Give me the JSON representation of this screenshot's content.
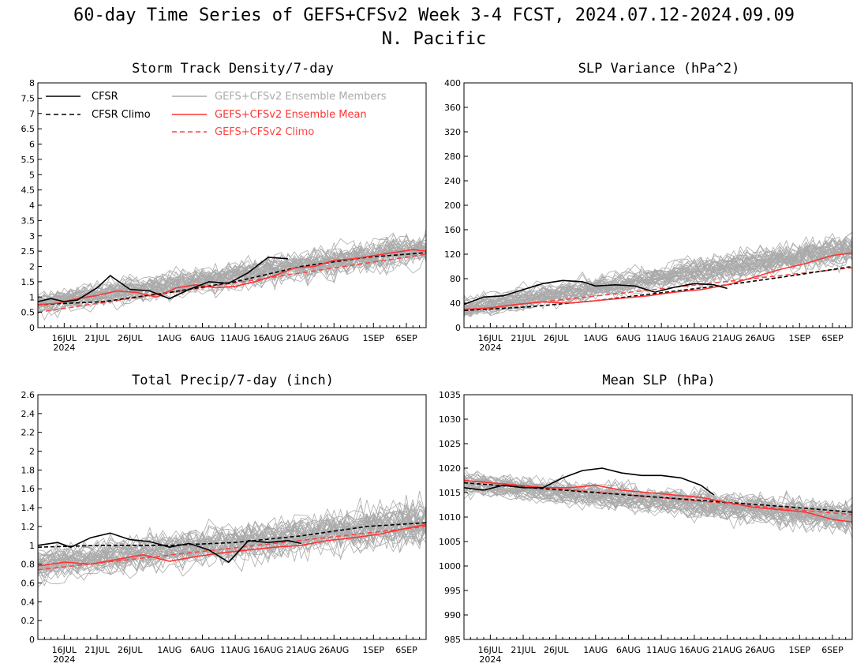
{
  "figure": {
    "title": "60-day Time Series of GEFS+CFSv2 Week 3-4 FCST, 2024.07.12-2024.09.09",
    "subtitle": "N. Pacific"
  },
  "legend": {
    "cfsr": "CFSR",
    "cfsr_climo": "CFSR Climo",
    "members": "GEFS+CFSv2 Ensemble Members",
    "ens_mean": "GEFS+CFSv2 Ensemble Mean",
    "ens_climo": "GEFS+CFSv2 Climo"
  },
  "colors": {
    "cfsr": "#000000",
    "members": "#aaaaaa",
    "ens_mean": "#ff3333",
    "ens_climo": "#ff4444"
  },
  "chart_data": [
    {
      "type": "line",
      "title": "Storm Track Density/7-day",
      "x_range": [
        "2024-07-12",
        "2024-09-09"
      ],
      "x_tick_labels": [
        "16JUL",
        "21JUL",
        "26JUL",
        "1AUG",
        "6AUG",
        "11AUG",
        "16AUG",
        "21AUG",
        "26AUG",
        "1SEP",
        "6SEP"
      ],
      "x_year_label": "2024",
      "ylim": [
        0,
        8
      ],
      "y_ticks": [
        "0",
        "0.5",
        "1",
        "1.5",
        "2",
        "2.5",
        "3",
        "3.5",
        "4",
        "4.5",
        "5",
        "5.5",
        "6",
        "6.5",
        "7",
        "7.5",
        "8"
      ],
      "legend_position": "top-left",
      "members": {
        "count": 40,
        "start_mean": 0.8,
        "end_mean": 2.6,
        "spread": 1.0
      },
      "series": [
        {
          "name": "CFSR",
          "style": "solid-black",
          "x": [
            0,
            2,
            4,
            6,
            9,
            11,
            14,
            17,
            20,
            23,
            26,
            29,
            32,
            35,
            38
          ],
          "y": [
            0.85,
            0.95,
            0.85,
            0.9,
            1.3,
            1.7,
            1.25,
            1.2,
            0.95,
            1.25,
            1.5,
            1.45,
            1.8,
            2.3,
            2.25
          ]
        },
        {
          "name": "CFSR Climo",
          "style": "dashed-black",
          "x": [
            0,
            10,
            20,
            30,
            40,
            50,
            59
          ],
          "y": [
            0.75,
            0.85,
            1.15,
            1.5,
            2.0,
            2.3,
            2.45
          ]
        },
        {
          "name": "GEFS+CFSv2 Ensemble Mean",
          "style": "solid-red",
          "x": [
            0,
            3,
            6,
            9,
            12,
            15,
            18,
            21,
            24,
            27,
            30,
            33,
            36,
            39,
            42,
            45,
            48,
            51,
            54,
            57,
            59
          ],
          "y": [
            0.75,
            0.8,
            0.95,
            1.05,
            1.2,
            1.15,
            1.0,
            1.3,
            1.4,
            1.3,
            1.35,
            1.5,
            1.7,
            1.95,
            2.0,
            2.2,
            2.25,
            2.35,
            2.45,
            2.55,
            2.5
          ]
        },
        {
          "name": "GEFS+CFSv2 Climo",
          "style": "dashed-red",
          "x": [
            0,
            59
          ],
          "y": [
            0.5,
            2.4
          ]
        }
      ]
    },
    {
      "type": "line",
      "title": "SLP Variance (hPa^2)",
      "x_range": [
        "2024-07-12",
        "2024-09-09"
      ],
      "x_tick_labels": [
        "16JUL",
        "21JUL",
        "26JUL",
        "1AUG",
        "6AUG",
        "11AUG",
        "16AUG",
        "21AUG",
        "26AUG",
        "1SEP",
        "6SEP"
      ],
      "x_year_label": "2024",
      "ylim": [
        0,
        400
      ],
      "y_ticks": [
        "0",
        "40",
        "80",
        "120",
        "160",
        "200",
        "240",
        "280",
        "320",
        "360",
        "400"
      ],
      "members": {
        "count": 40,
        "start_mean": 32,
        "end_mean": 130,
        "spread": 45
      },
      "series": [
        {
          "name": "CFSR",
          "style": "solid-black",
          "x": [
            0,
            3,
            6,
            9,
            12,
            15,
            18,
            20,
            23,
            26,
            29,
            32,
            35,
            38,
            40
          ],
          "y": [
            38,
            50,
            52,
            62,
            72,
            77,
            75,
            68,
            70,
            68,
            58,
            66,
            72,
            70,
            64
          ]
        },
        {
          "name": "CFSR Climo",
          "style": "dashed-black",
          "x": [
            0,
            10,
            20,
            30,
            40,
            50,
            59
          ],
          "y": [
            28,
            34,
            44,
            57,
            70,
            85,
            100
          ]
        },
        {
          "name": "GEFS+CFSv2 Ensemble Mean",
          "style": "solid-red",
          "x": [
            0,
            4,
            8,
            12,
            16,
            20,
            24,
            28,
            32,
            36,
            40,
            44,
            48,
            52,
            56,
            59
          ],
          "y": [
            30,
            32,
            38,
            42,
            40,
            44,
            48,
            52,
            58,
            62,
            70,
            82,
            95,
            105,
            118,
            122
          ]
        },
        {
          "name": "GEFS+CFSv2 Climo",
          "style": "dashed-red",
          "x": [
            0,
            59
          ],
          "y": [
            28,
            98
          ]
        }
      ]
    },
    {
      "type": "line",
      "title": "Total Precip/7-day (inch)",
      "x_range": [
        "2024-07-12",
        "2024-09-09"
      ],
      "x_tick_labels": [
        "16JUL",
        "21JUL",
        "26JUL",
        "1AUG",
        "6AUG",
        "11AUG",
        "16AUG",
        "21AUG",
        "26AUG",
        "1SEP",
        "6SEP"
      ],
      "x_year_label": "2024",
      "ylim": [
        0,
        2.6
      ],
      "y_ticks": [
        "0",
        "0.2",
        "0.4",
        "0.6",
        "0.8",
        "1",
        "1.2",
        "1.4",
        "1.6",
        "1.8",
        "2",
        "2.2",
        "2.4",
        "2.6"
      ],
      "members": {
        "count": 40,
        "start_mean": 0.8,
        "end_mean": 1.25,
        "spread": 0.45
      },
      "series": [
        {
          "name": "CFSR",
          "style": "solid-black",
          "x": [
            0,
            3,
            5,
            8,
            11,
            14,
            17,
            20,
            23,
            26,
            29,
            32,
            35,
            38,
            40
          ],
          "y": [
            1.0,
            1.03,
            0.98,
            1.08,
            1.13,
            1.06,
            1.04,
            0.98,
            1.02,
            0.95,
            0.82,
            1.05,
            1.03,
            1.05,
            1.02
          ]
        },
        {
          "name": "CFSR Climo",
          "style": "dashed-black",
          "x": [
            0,
            10,
            20,
            30,
            40,
            50,
            59
          ],
          "y": [
            0.98,
            1.0,
            1.0,
            1.03,
            1.1,
            1.2,
            1.24
          ]
        },
        {
          "name": "GEFS+CFSv2 Ensemble Mean",
          "style": "solid-red",
          "x": [
            0,
            4,
            8,
            12,
            16,
            20,
            24,
            28,
            32,
            36,
            40,
            44,
            48,
            52,
            56,
            59
          ],
          "y": [
            0.78,
            0.82,
            0.8,
            0.85,
            0.9,
            0.83,
            0.88,
            0.92,
            0.95,
            0.98,
            1.0,
            1.05,
            1.08,
            1.12,
            1.18,
            1.22
          ]
        },
        {
          "name": "GEFS+CFSv2 Climo",
          "style": "dashed-red",
          "x": [
            0,
            59
          ],
          "y": [
            0.74,
            1.2
          ]
        }
      ]
    },
    {
      "type": "line",
      "title": "Mean SLP (hPa)",
      "x_range": [
        "2024-07-12",
        "2024-09-09"
      ],
      "x_tick_labels": [
        "16JUL",
        "21JUL",
        "26JUL",
        "1AUG",
        "6AUG",
        "11AUG",
        "16AUG",
        "21AUG",
        "26AUG",
        "1SEP",
        "6SEP"
      ],
      "x_year_label": "2024",
      "ylim": [
        985,
        1035
      ],
      "y_ticks": [
        "985",
        "990",
        "995",
        "1000",
        "1005",
        "1010",
        "1015",
        "1020",
        "1025",
        "1030",
        "1035"
      ],
      "members": {
        "count": 40,
        "start_mean": 1017,
        "end_mean": 1010,
        "spread": 6
      },
      "series": [
        {
          "name": "CFSR",
          "style": "solid-black",
          "x": [
            0,
            3,
            6,
            9,
            12,
            15,
            18,
            21,
            24,
            27,
            30,
            33,
            36,
            38
          ],
          "y": [
            1016,
            1015.5,
            1016.5,
            1016,
            1016,
            1018,
            1019.5,
            1020,
            1019,
            1018.5,
            1018.5,
            1018,
            1016.5,
            1014.5
          ]
        },
        {
          "name": "CFSR Climo",
          "style": "dashed-black",
          "x": [
            0,
            10,
            20,
            30,
            40,
            50,
            59
          ],
          "y": [
            1017,
            1016,
            1015,
            1014,
            1013,
            1012,
            1011
          ]
        },
        {
          "name": "GEFS+CFSv2 Ensemble Mean",
          "style": "solid-red",
          "x": [
            0,
            4,
            8,
            12,
            16,
            20,
            24,
            28,
            32,
            36,
            40,
            44,
            48,
            52,
            56,
            59
          ],
          "y": [
            1017.5,
            1017,
            1016.5,
            1016,
            1016,
            1016.5,
            1015.5,
            1015,
            1014.5,
            1014,
            1013,
            1012,
            1011.5,
            1011,
            1009.5,
            1009
          ]
        },
        {
          "name": "GEFS+CFSv2 Climo",
          "style": "dashed-red",
          "x": [
            0,
            59
          ],
          "y": [
            1017.5,
            1010.5
          ]
        }
      ]
    }
  ]
}
